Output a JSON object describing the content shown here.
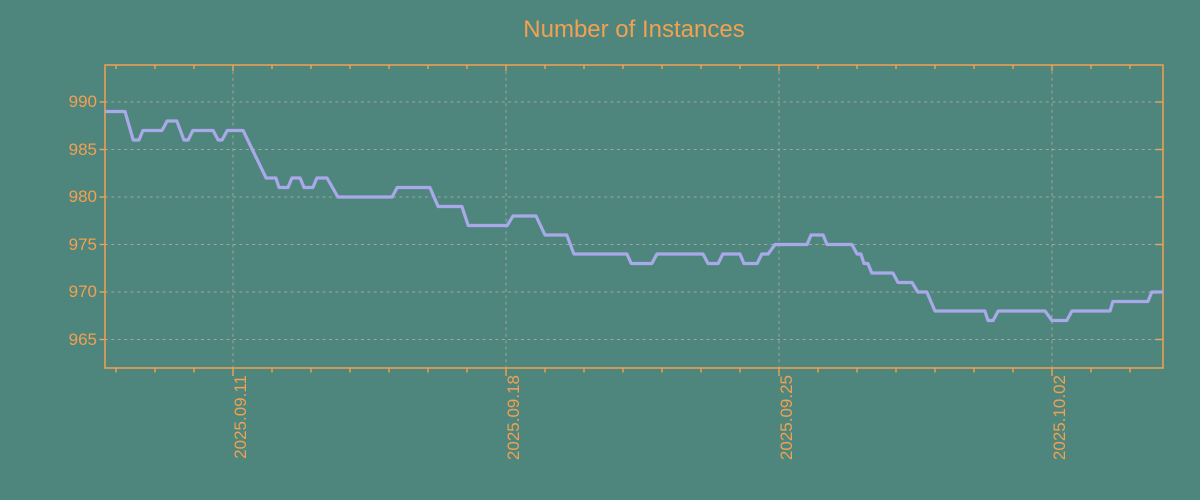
{
  "colors": {
    "background": "#4E867E",
    "accent": "#F1A150",
    "line": "#A9A9E9",
    "grid": "#A8A8A8"
  },
  "chart_data": {
    "type": "line",
    "title": "Number of Instances",
    "legend": "none",
    "x_axis": {
      "tick_labels": [
        "2025.09.11",
        "2025.09.18",
        "2025.09.25",
        "2025.10.02"
      ],
      "tick_label_days": [
        0,
        7,
        14,
        21
      ],
      "minor_tick_every_days": 1,
      "range_days_rel_first_label": [
        -3.28,
        23.85
      ]
    },
    "y_axis": {
      "tick_labels": [
        990,
        985,
        980,
        975,
        970,
        965
      ],
      "range": [
        962,
        993.9
      ]
    },
    "grid": {
      "style": "dashed",
      "horizontal_at": [
        965,
        970,
        975,
        980,
        985,
        990
      ],
      "vertical_at_days": [
        0,
        7,
        14,
        21
      ]
    },
    "series": [
      {
        "name": "instances",
        "points_day_value": [
          [
            -3.28,
            989
          ],
          [
            -2.77,
            989
          ],
          [
            -2.56,
            986
          ],
          [
            -2.41,
            986
          ],
          [
            -2.31,
            987
          ],
          [
            -1.82,
            987
          ],
          [
            -1.69,
            988
          ],
          [
            -1.44,
            988
          ],
          [
            -1.26,
            986
          ],
          [
            -1.15,
            986
          ],
          [
            -1.03,
            987
          ],
          [
            -0.51,
            987
          ],
          [
            -0.38,
            986
          ],
          [
            -0.28,
            986
          ],
          [
            -0.15,
            987
          ],
          [
            0.26,
            987
          ],
          [
            0.85,
            982
          ],
          [
            1.1,
            982
          ],
          [
            1.18,
            981
          ],
          [
            1.41,
            981
          ],
          [
            1.51,
            982
          ],
          [
            1.72,
            982
          ],
          [
            1.82,
            981
          ],
          [
            2.05,
            981
          ],
          [
            2.15,
            982
          ],
          [
            2.41,
            982
          ],
          [
            2.69,
            980
          ],
          [
            4.08,
            980
          ],
          [
            4.21,
            981
          ],
          [
            5.05,
            981
          ],
          [
            5.26,
            979
          ],
          [
            5.87,
            979
          ],
          [
            6.03,
            977
          ],
          [
            7.03,
            977
          ],
          [
            7.18,
            978
          ],
          [
            7.77,
            978
          ],
          [
            8.0,
            976
          ],
          [
            8.56,
            976
          ],
          [
            8.74,
            974
          ],
          [
            10.1,
            974
          ],
          [
            10.21,
            973
          ],
          [
            10.74,
            973
          ],
          [
            10.87,
            974
          ],
          [
            12.05,
            974
          ],
          [
            12.18,
            973
          ],
          [
            12.44,
            973
          ],
          [
            12.56,
            974
          ],
          [
            13.0,
            974
          ],
          [
            13.1,
            973
          ],
          [
            13.44,
            973
          ],
          [
            13.56,
            974
          ],
          [
            13.72,
            974
          ],
          [
            13.9,
            975
          ],
          [
            14.72,
            975
          ],
          [
            14.82,
            976
          ],
          [
            15.13,
            976
          ],
          [
            15.23,
            975
          ],
          [
            15.87,
            975
          ],
          [
            16.0,
            974
          ],
          [
            16.1,
            974
          ],
          [
            16.18,
            973
          ],
          [
            16.28,
            973
          ],
          [
            16.38,
            972
          ],
          [
            16.92,
            972
          ],
          [
            17.05,
            971
          ],
          [
            17.41,
            971
          ],
          [
            17.56,
            970
          ],
          [
            17.79,
            970
          ],
          [
            18.0,
            968
          ],
          [
            19.28,
            968
          ],
          [
            19.36,
            967
          ],
          [
            19.49,
            967
          ],
          [
            19.62,
            968
          ],
          [
            20.82,
            968
          ],
          [
            21.0,
            967
          ],
          [
            21.38,
            967
          ],
          [
            21.51,
            968
          ],
          [
            22.49,
            968
          ],
          [
            22.56,
            969
          ],
          [
            23.46,
            969
          ],
          [
            23.56,
            970
          ],
          [
            23.85,
            970
          ]
        ]
      }
    ]
  }
}
